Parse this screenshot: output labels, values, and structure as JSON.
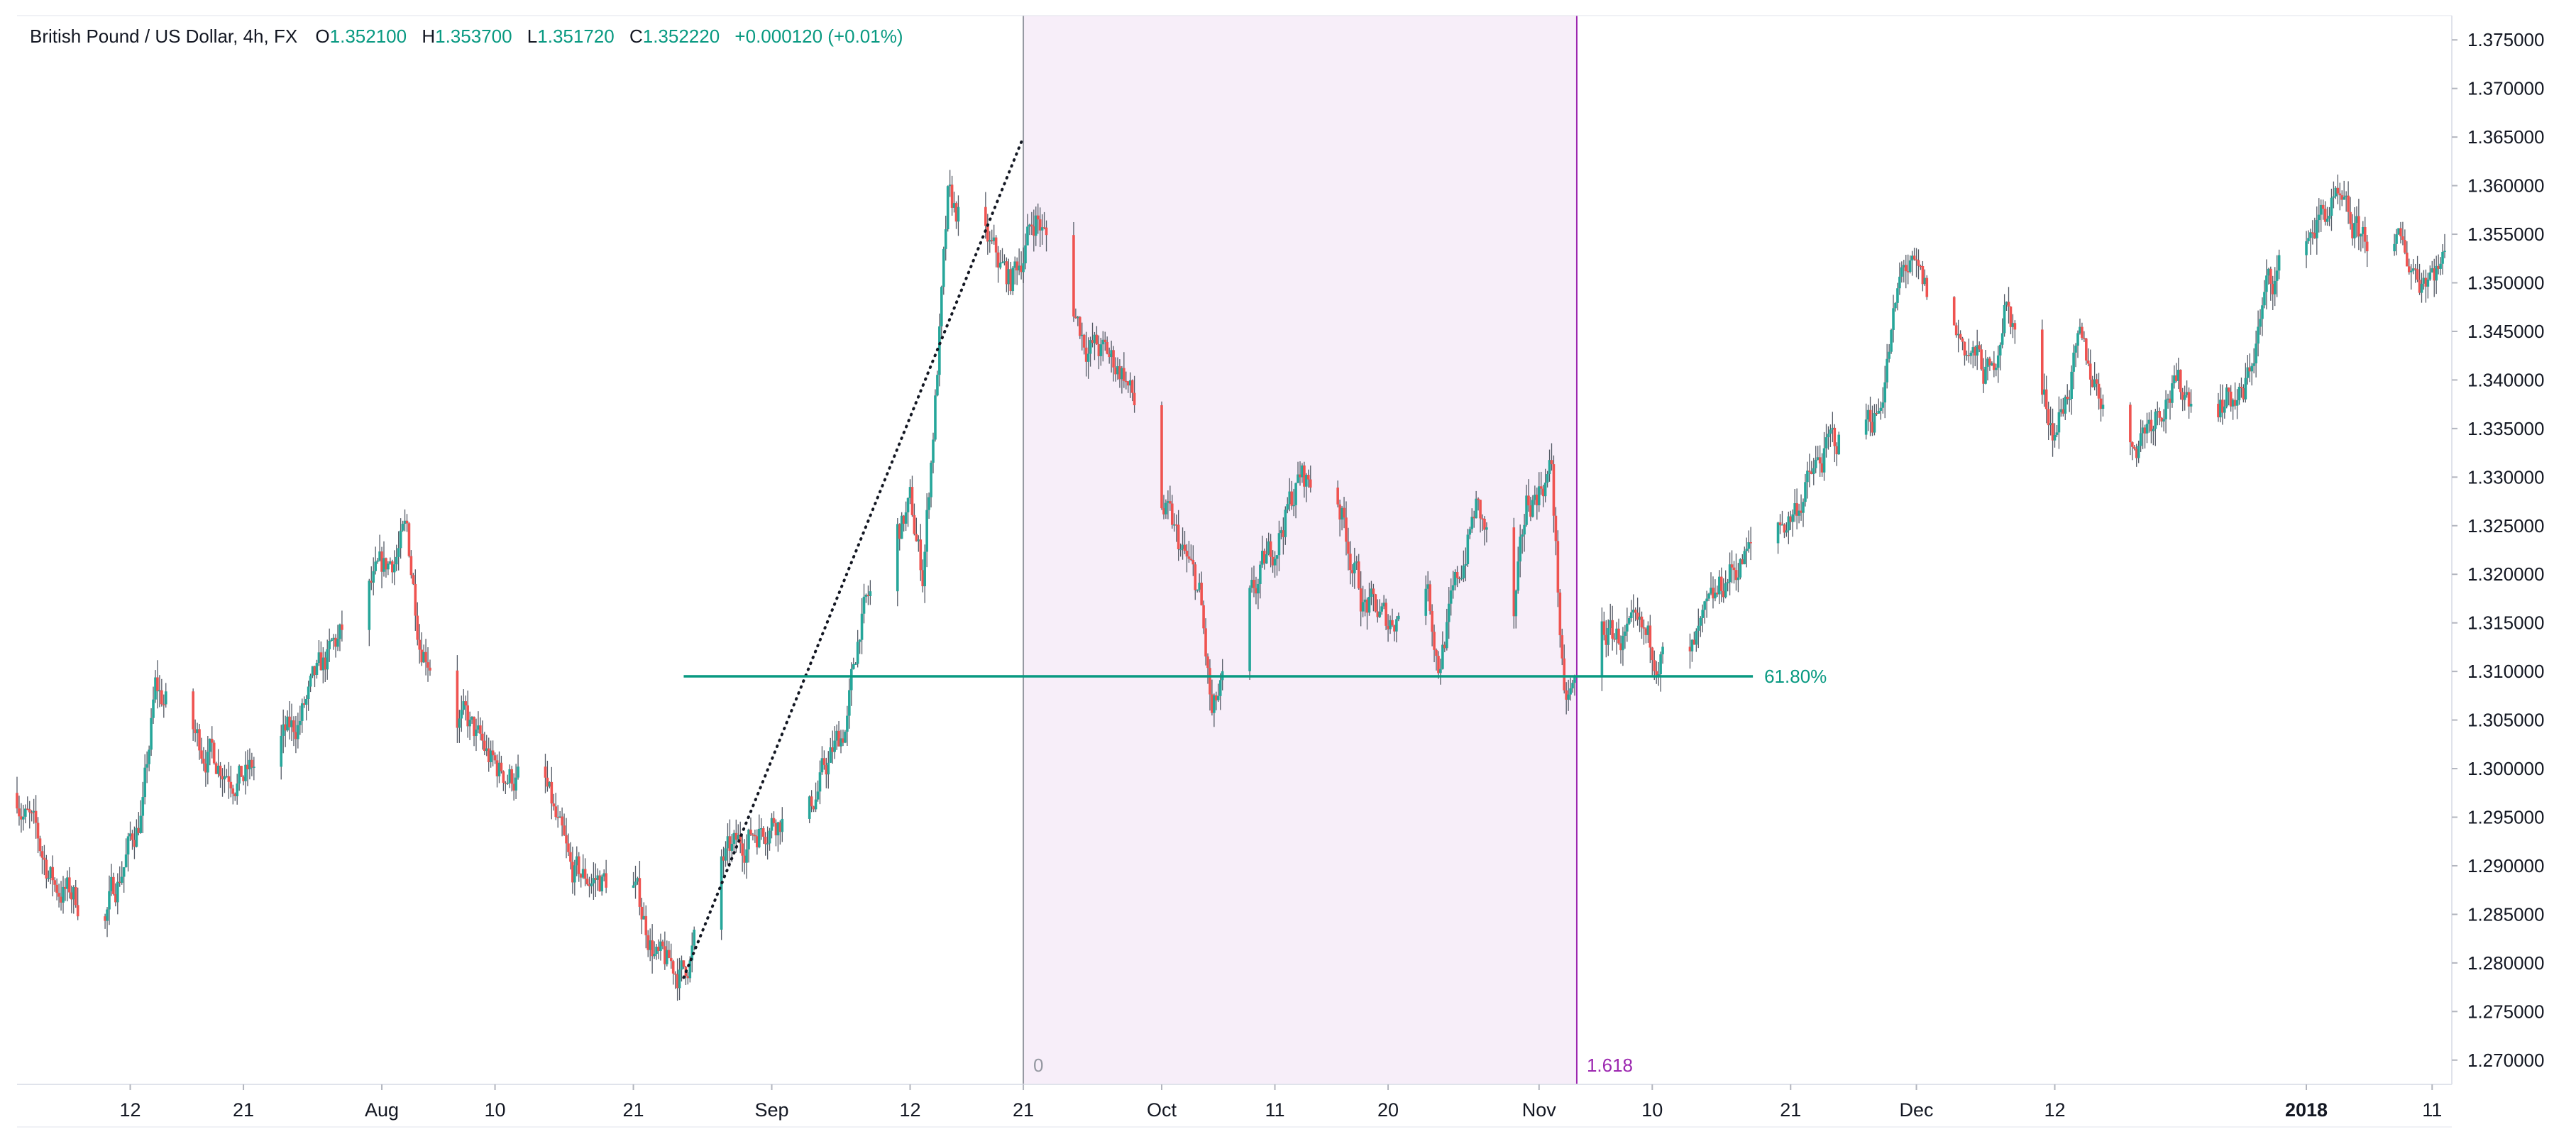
{
  "chart_data": {
    "type": "candlestick",
    "instrument": "British Pound / US Dollar, 4h, FX",
    "ohlc": {
      "o_label": "O",
      "o": "1.352100",
      "h_label": "H",
      "h": "1.353700",
      "l_label": "L",
      "l": "1.351720",
      "c_label": "C",
      "c": "1.352220",
      "change": "+0.000120 (+0.01%)"
    },
    "ylim": [
      1.2675,
      1.3775
    ],
    "y_ticks": [
      "1.375000",
      "1.370000",
      "1.365000",
      "1.360000",
      "1.355000",
      "1.350000",
      "1.345000",
      "1.340000",
      "1.335000",
      "1.330000",
      "1.325000",
      "1.320000",
      "1.315000",
      "1.310000",
      "1.305000",
      "1.300000",
      "1.295000",
      "1.290000",
      "1.285000",
      "1.280000",
      "1.275000",
      "1.270000"
    ],
    "x_axis": {
      "start": "2017-07-03",
      "end": "2018-01-12",
      "ticks": [
        {
          "date": "2017-07-12",
          "label": "12",
          "bold": false
        },
        {
          "date": "2017-07-21",
          "label": "21",
          "bold": false
        },
        {
          "date": "2017-08-01",
          "label": "Aug",
          "bold": false
        },
        {
          "date": "2017-08-10",
          "label": "10",
          "bold": false
        },
        {
          "date": "2017-08-21",
          "label": "21",
          "bold": false
        },
        {
          "date": "2017-09-01",
          "label": "Sep",
          "bold": false
        },
        {
          "date": "2017-09-12",
          "label": "12",
          "bold": false
        },
        {
          "date": "2017-09-21",
          "label": "21",
          "bold": false
        },
        {
          "date": "2017-10-02",
          "label": "Oct",
          "bold": false
        },
        {
          "date": "2017-10-11",
          "label": "11",
          "bold": false
        },
        {
          "date": "2017-10-20",
          "label": "20",
          "bold": false
        },
        {
          "date": "2017-11-01",
          "label": "Nov",
          "bold": false
        },
        {
          "date": "2017-11-10",
          "label": "10",
          "bold": false
        },
        {
          "date": "2017-11-21",
          "label": "21",
          "bold": false
        },
        {
          "date": "2017-12-01",
          "label": "Dec",
          "bold": false
        },
        {
          "date": "2017-12-12",
          "label": "12",
          "bold": false
        },
        {
          "date": "2018-01-01",
          "label": "2018",
          "bold": true
        },
        {
          "date": "2018-01-11",
          "label": "11",
          "bold": false
        }
      ]
    },
    "colors": {
      "up": "#26a69a",
      "down": "#ef5350",
      "wick": "#555b66",
      "accent": "#089981",
      "zone": "#f7eef9",
      "zone_line": "#9c27b0",
      "grid_axis": "#e0e3eb",
      "text": "#131722"
    },
    "price_path": [
      {
        "date": "2017-07-03",
        "price": 1.2975
      },
      {
        "date": "2017-07-06",
        "price": 1.288
      },
      {
        "date": "2017-07-10",
        "price": 1.285
      },
      {
        "date": "2017-07-13",
        "price": 1.296
      },
      {
        "date": "2017-07-14",
        "price": 1.308
      },
      {
        "date": "2017-07-18",
        "price": 1.302
      },
      {
        "date": "2017-07-21",
        "price": 1.299
      },
      {
        "date": "2017-07-25",
        "price": 1.304
      },
      {
        "date": "2017-07-28",
        "price": 1.312
      },
      {
        "date": "2017-07-31",
        "price": 1.318
      },
      {
        "date": "2017-08-03",
        "price": 1.324
      },
      {
        "date": "2017-08-04",
        "price": 1.314
      },
      {
        "date": "2017-08-07",
        "price": 1.306
      },
      {
        "date": "2017-08-10",
        "price": 1.3
      },
      {
        "date": "2017-08-14",
        "price": 1.298
      },
      {
        "date": "2017-08-16",
        "price": 1.289
      },
      {
        "date": "2017-08-21",
        "price": 1.288
      },
      {
        "date": "2017-08-23",
        "price": 1.28
      },
      {
        "date": "2017-08-25",
        "price": 1.279
      },
      {
        "date": "2017-08-28",
        "price": 1.29
      },
      {
        "date": "2017-08-30",
        "price": 1.293
      },
      {
        "date": "2017-09-01",
        "price": 1.295
      },
      {
        "date": "2017-09-04",
        "price": 1.296
      },
      {
        "date": "2017-09-07",
        "price": 1.305
      },
      {
        "date": "2017-09-08",
        "price": 1.315
      },
      {
        "date": "2017-09-12",
        "price": 1.327
      },
      {
        "date": "2017-09-13",
        "price": 1.32
      },
      {
        "date": "2017-09-14",
        "price": 1.338
      },
      {
        "date": "2017-09-15",
        "price": 1.358
      },
      {
        "date": "2017-09-18",
        "price": 1.354
      },
      {
        "date": "2017-09-20",
        "price": 1.35
      },
      {
        "date": "2017-09-22",
        "price": 1.357
      },
      {
        "date": "2017-09-26",
        "price": 1.344
      },
      {
        "date": "2017-09-29",
        "price": 1.341
      },
      {
        "date": "2017-10-02",
        "price": 1.327
      },
      {
        "date": "2017-10-05",
        "price": 1.318
      },
      {
        "date": "2017-10-06",
        "price": 1.305
      },
      {
        "date": "2017-10-10",
        "price": 1.32
      },
      {
        "date": "2017-10-13",
        "price": 1.33
      },
      {
        "date": "2017-10-16",
        "price": 1.328
      },
      {
        "date": "2017-10-18",
        "price": 1.317
      },
      {
        "date": "2017-10-20",
        "price": 1.315
      },
      {
        "date": "2017-10-23",
        "price": 1.32
      },
      {
        "date": "2017-10-24",
        "price": 1.311
      },
      {
        "date": "2017-10-27",
        "price": 1.327
      },
      {
        "date": "2017-10-30",
        "price": 1.315
      },
      {
        "date": "2017-10-31",
        "price": 1.327
      },
      {
        "date": "2017-11-02",
        "price": 1.331
      },
      {
        "date": "2017-11-03",
        "price": 1.306
      },
      {
        "date": "2017-11-06",
        "price": 1.314
      },
      {
        "date": "2017-11-09",
        "price": 1.313
      },
      {
        "date": "2017-11-13",
        "price": 1.311
      },
      {
        "date": "2017-11-16",
        "price": 1.32
      },
      {
        "date": "2017-11-21",
        "price": 1.326
      },
      {
        "date": "2017-11-24",
        "price": 1.333
      },
      {
        "date": "2017-11-28",
        "price": 1.337
      },
      {
        "date": "2017-11-30",
        "price": 1.352
      },
      {
        "date": "2017-12-04",
        "price": 1.345
      },
      {
        "date": "2017-12-07",
        "price": 1.34
      },
      {
        "date": "2017-12-08",
        "price": 1.348
      },
      {
        "date": "2017-12-12",
        "price": 1.335
      },
      {
        "date": "2017-12-14",
        "price": 1.343
      },
      {
        "date": "2017-12-18",
        "price": 1.333
      },
      {
        "date": "2017-12-21",
        "price": 1.339
      },
      {
        "date": "2017-12-27",
        "price": 1.338
      },
      {
        "date": "2017-12-29",
        "price": 1.35
      },
      {
        "date": "2018-01-03",
        "price": 1.358
      },
      {
        "date": "2018-01-05",
        "price": 1.355
      },
      {
        "date": "2018-01-08",
        "price": 1.354
      },
      {
        "date": "2018-01-10",
        "price": 1.351
      },
      {
        "date": "2018-01-12",
        "price": 1.3522
      }
    ],
    "annotations": {
      "trend_line": {
        "from": {
          "date": "2017-08-25",
          "price": 1.2785
        },
        "to": {
          "date": "2017-09-21",
          "price": 1.365
        },
        "style": "dotted",
        "color": "#131722"
      },
      "fib_level": {
        "label": "61.80%",
        "price": 1.3095,
        "from_date": "2017-08-25",
        "to_date": "2017-11-18",
        "color": "#089981"
      },
      "time_zone": {
        "from_date": "2017-09-21",
        "to_date": "2017-11-04",
        "start_label": "0",
        "end_label": "1.618",
        "start_line_color": "#9598a1",
        "end_line_color": "#9c27b0"
      }
    }
  }
}
